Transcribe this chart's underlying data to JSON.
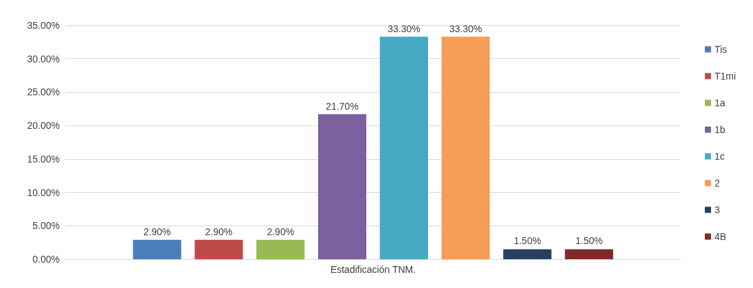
{
  "chart_data": {
    "type": "bar",
    "categories": [
      "Estadificación TNM."
    ],
    "series": [
      {
        "name": "Tis",
        "color": "#4a7ebb",
        "values": [
          2.9
        ],
        "value_labels": [
          "2.90%"
        ]
      },
      {
        "name": "T1mi",
        "color": "#be4b48",
        "values": [
          2.9
        ],
        "value_labels": [
          "2.90%"
        ]
      },
      {
        "name": "1a",
        "color": "#98b954",
        "values": [
          2.9
        ],
        "value_labels": [
          "2.90%"
        ]
      },
      {
        "name": "1b",
        "color": "#7d60a0",
        "values": [
          21.7
        ],
        "value_labels": [
          "21.70%"
        ]
      },
      {
        "name": "1c",
        "color": "#46aac5",
        "values": [
          33.3
        ],
        "value_labels": [
          "33.30%"
        ]
      },
      {
        "name": "2",
        "color": "#f59d56",
        "values": [
          33.3
        ],
        "value_labels": [
          "33.30%"
        ]
      },
      {
        "name": "3",
        "color": "#254061",
        "values": [
          1.5
        ],
        "value_labels": [
          "1.50%"
        ]
      },
      {
        "name": "4B",
        "color": "#7f2a2a",
        "values": [
          1.5
        ],
        "value_labels": [
          "1.50%"
        ]
      }
    ],
    "ylim": [
      0,
      35
    ],
    "yticks": [
      {
        "value": 0,
        "label": "0.00%"
      },
      {
        "value": 5,
        "label": "5.00%"
      },
      {
        "value": 10,
        "label": "10.00%"
      },
      {
        "value": 15,
        "label": "15.00%"
      },
      {
        "value": 20,
        "label": "20.00%"
      },
      {
        "value": 25,
        "label": "25.00%"
      },
      {
        "value": 30,
        "label": "30.00%"
      },
      {
        "value": 35,
        "label": "35.00%"
      }
    ],
    "grid": "y",
    "legend": "right"
  }
}
